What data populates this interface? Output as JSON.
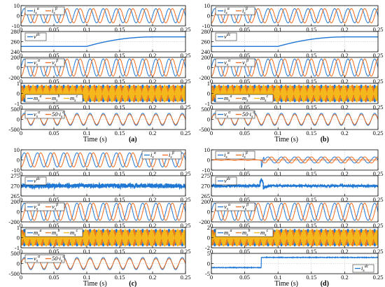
{
  "colors": {
    "blue": "#1f77d4",
    "orange": "#f26a1b",
    "yellow": "#f4b81c",
    "darkorange": "#e8791e",
    "axis": "#000000",
    "grid": "#bdbdbd"
  },
  "chart_data": [
    {
      "type": "line",
      "panel_label": "(a)",
      "xlabel": "Time (s)",
      "xlim": [
        0,
        0.25
      ],
      "x_ticks": [
        "0",
        "0.05",
        "0.1",
        "0.15",
        "0.2",
        "0.25"
      ],
      "grid": true,
      "subplots": [
        {
          "kind": "sine2",
          "ylim": [
            -10,
            10
          ],
          "y_ticks": [
            "10",
            "0",
            "-10"
          ],
          "legend": [
            "i_s^α",
            "i_s^β"
          ],
          "amps": [
            7,
            7
          ],
          "freq": 50,
          "legend_pos": "top-left"
        },
        {
          "kind": "dc",
          "ylim": [
            250,
            280
          ],
          "y_ticks": [
            "280",
            "260",
            "240"
          ],
          "legend": [
            "v^dc"
          ],
          "dc": {
            "v0": 258,
            "v1": 272,
            "t0": 0.1,
            "t1": 0.2
          },
          "legend_pos": "top-left"
        },
        {
          "kind": "sine2",
          "ylim": [
            -200,
            200
          ],
          "y_ticks": [
            "200",
            "0",
            "-200"
          ],
          "legend": [
            "v_s^α",
            "v_s^β"
          ],
          "amps": [
            170,
            170
          ],
          "freq": 50,
          "legend_pos": "top-left"
        },
        {
          "kind": "mod3",
          "ylim": [
            -1,
            1
          ],
          "y_ticks": [
            "1",
            "0",
            "-1"
          ],
          "legend": [
            "m_s^a",
            "m_s^b",
            "m_s^c"
          ],
          "freq": 50,
          "legend_pos": "bottom-left"
        },
        {
          "kind": "vi",
          "ylim": [
            -500,
            500
          ],
          "y_ticks": [
            "500",
            "0",
            "-500"
          ],
          "legend": [
            "v_s^α",
            "50·i_s^α"
          ],
          "amps": [
            300,
            260
          ],
          "freq": 50,
          "legend_pos": "top-left"
        }
      ]
    },
    {
      "type": "line",
      "panel_label": "(b)",
      "xlabel": "Time (s)",
      "xlim": [
        0,
        0.25
      ],
      "x_ticks": [
        "0",
        "0.05",
        "0.1",
        "0.15",
        "0.2",
        "0.25"
      ],
      "grid": true,
      "subplots": [
        {
          "kind": "sine2",
          "ylim": [
            -10,
            10
          ],
          "y_ticks": [
            "10",
            "0",
            "-10"
          ],
          "legend": [
            "i_s^α",
            "i_s^β"
          ],
          "amps": [
            7,
            7
          ],
          "freq": 50,
          "legend_pos": "top-left"
        },
        {
          "kind": "dc",
          "ylim": [
            250,
            280
          ],
          "y_ticks": [
            "280",
            "260",
            "240"
          ],
          "legend": [
            "v^dc"
          ],
          "dc": {
            "v0": 258,
            "v1": 272,
            "t0": 0.1,
            "t1": 0.2
          },
          "legend_pos": "top-left"
        },
        {
          "kind": "sine2",
          "ylim": [
            -200,
            200
          ],
          "y_ticks": [
            "200",
            "0",
            "-200"
          ],
          "legend": [
            "v_s^α",
            "v_s^β"
          ],
          "amps": [
            170,
            170
          ],
          "freq": 50,
          "legend_pos": "top-left"
        },
        {
          "kind": "mod3",
          "ylim": [
            -1,
            1
          ],
          "y_ticks": [
            "1",
            "0",
            "-1"
          ],
          "legend": [
            "m_s^a",
            "m_s^b",
            "m_s^c"
          ],
          "freq": 50,
          "legend_pos": "bottom-left"
        },
        {
          "kind": "vi",
          "ylim": [
            -500,
            500
          ],
          "y_ticks": [
            "500",
            "0",
            "-500"
          ],
          "legend": [
            "v_s^α",
            "50·i_s^α"
          ],
          "amps": [
            300,
            260
          ],
          "freq": 50,
          "legend_pos": "top-left"
        }
      ]
    },
    {
      "type": "line",
      "panel_label": "(c)",
      "xlabel": "Time (s)",
      "xlim": [
        0,
        0.25
      ],
      "x_ticks": [
        "0",
        "0.05",
        "0.1",
        "0.15",
        "0.2",
        "0.25"
      ],
      "grid": true,
      "subplots": [
        {
          "kind": "sine2",
          "ylim": [
            -10,
            10
          ],
          "y_ticks": [
            "10",
            "0",
            "-10"
          ],
          "legend": [
            "i_s^α",
            "i_s^β"
          ],
          "amps": [
            7,
            7
          ],
          "freq": 50,
          "legend_pos": "top-right"
        },
        {
          "kind": "dcnoise",
          "ylim": [
            265,
            275
          ],
          "y_ticks": [
            "275",
            "270",
            "265"
          ],
          "legend": [
            "v^dc"
          ],
          "level": 270,
          "legend_pos": "top-left"
        },
        {
          "kind": "sine2",
          "ylim": [
            -200,
            200
          ],
          "y_ticks": [
            "200",
            "0",
            "-200"
          ],
          "legend": [
            "v_s^α",
            "v_s^β"
          ],
          "amps": [
            170,
            170
          ],
          "freq": 50,
          "legend_pos": "top-left"
        },
        {
          "kind": "mod3",
          "ylim": [
            -1,
            1
          ],
          "y_ticks": [
            "1",
            "0",
            "-1"
          ],
          "legend": [
            "m_s^a",
            "m_s^b",
            "m_s^c"
          ],
          "freq": 50,
          "legend_pos": "top-left"
        },
        {
          "kind": "vi",
          "ylim": [
            -500,
            500
          ],
          "y_ticks": [
            "500",
            "0",
            "-500"
          ],
          "legend": [
            "v_s^α",
            "50·i_s^α"
          ],
          "amps": [
            300,
            260
          ],
          "freq": 50,
          "legend_pos": "top-left"
        }
      ]
    },
    {
      "type": "line",
      "panel_label": "(d)",
      "xlabel": "Time (s)",
      "xlim": [
        0,
        0.25
      ],
      "x_ticks": [
        "0",
        "0.05",
        "0.1",
        "0.15",
        "0.2",
        "0.25"
      ],
      "grid": true,
      "subplots": [
        {
          "kind": "step_sine",
          "ylim": [
            -10,
            10
          ],
          "y_ticks": [
            "10",
            "0",
            "-10"
          ],
          "legend": [
            "i_s^α",
            "i_s^β"
          ],
          "amps": [
            0.4,
            3
          ],
          "step_t": 0.075,
          "freq": 50,
          "legend_pos": "top-left"
        },
        {
          "kind": "dcspike",
          "ylim": [
            265,
            275
          ],
          "y_ticks": [
            "275",
            "270",
            "265"
          ],
          "legend": [
            "v^dc"
          ],
          "level": 270,
          "spike_t": 0.075,
          "legend_pos": "top-left"
        },
        {
          "kind": "sine2",
          "ylim": [
            -200,
            200
          ],
          "y_ticks": [
            "200",
            "0",
            "-200"
          ],
          "legend": [
            "v_s^α",
            "v_s^β"
          ],
          "amps": [
            170,
            170
          ],
          "freq": 50,
          "legend_pos": "top-left"
        },
        {
          "kind": "mod3",
          "ylim": [
            -2,
            2
          ],
          "y_ticks": [
            "2",
            "0",
            "-2"
          ],
          "legend": [
            "m_s^a",
            "m_s^b",
            "m_s^c"
          ],
          "freq": 50,
          "step_t": 0.075,
          "legend_pos": "top-left"
        },
        {
          "kind": "idc",
          "ylim": [
            -5,
            5
          ],
          "y_ticks": [
            "5",
            "0",
            "-5"
          ],
          "legend": [
            "i_s^dc"
          ],
          "v0": -2,
          "v1": 3,
          "step_t": 0.075,
          "legend_pos": "bottom-right"
        }
      ]
    }
  ]
}
